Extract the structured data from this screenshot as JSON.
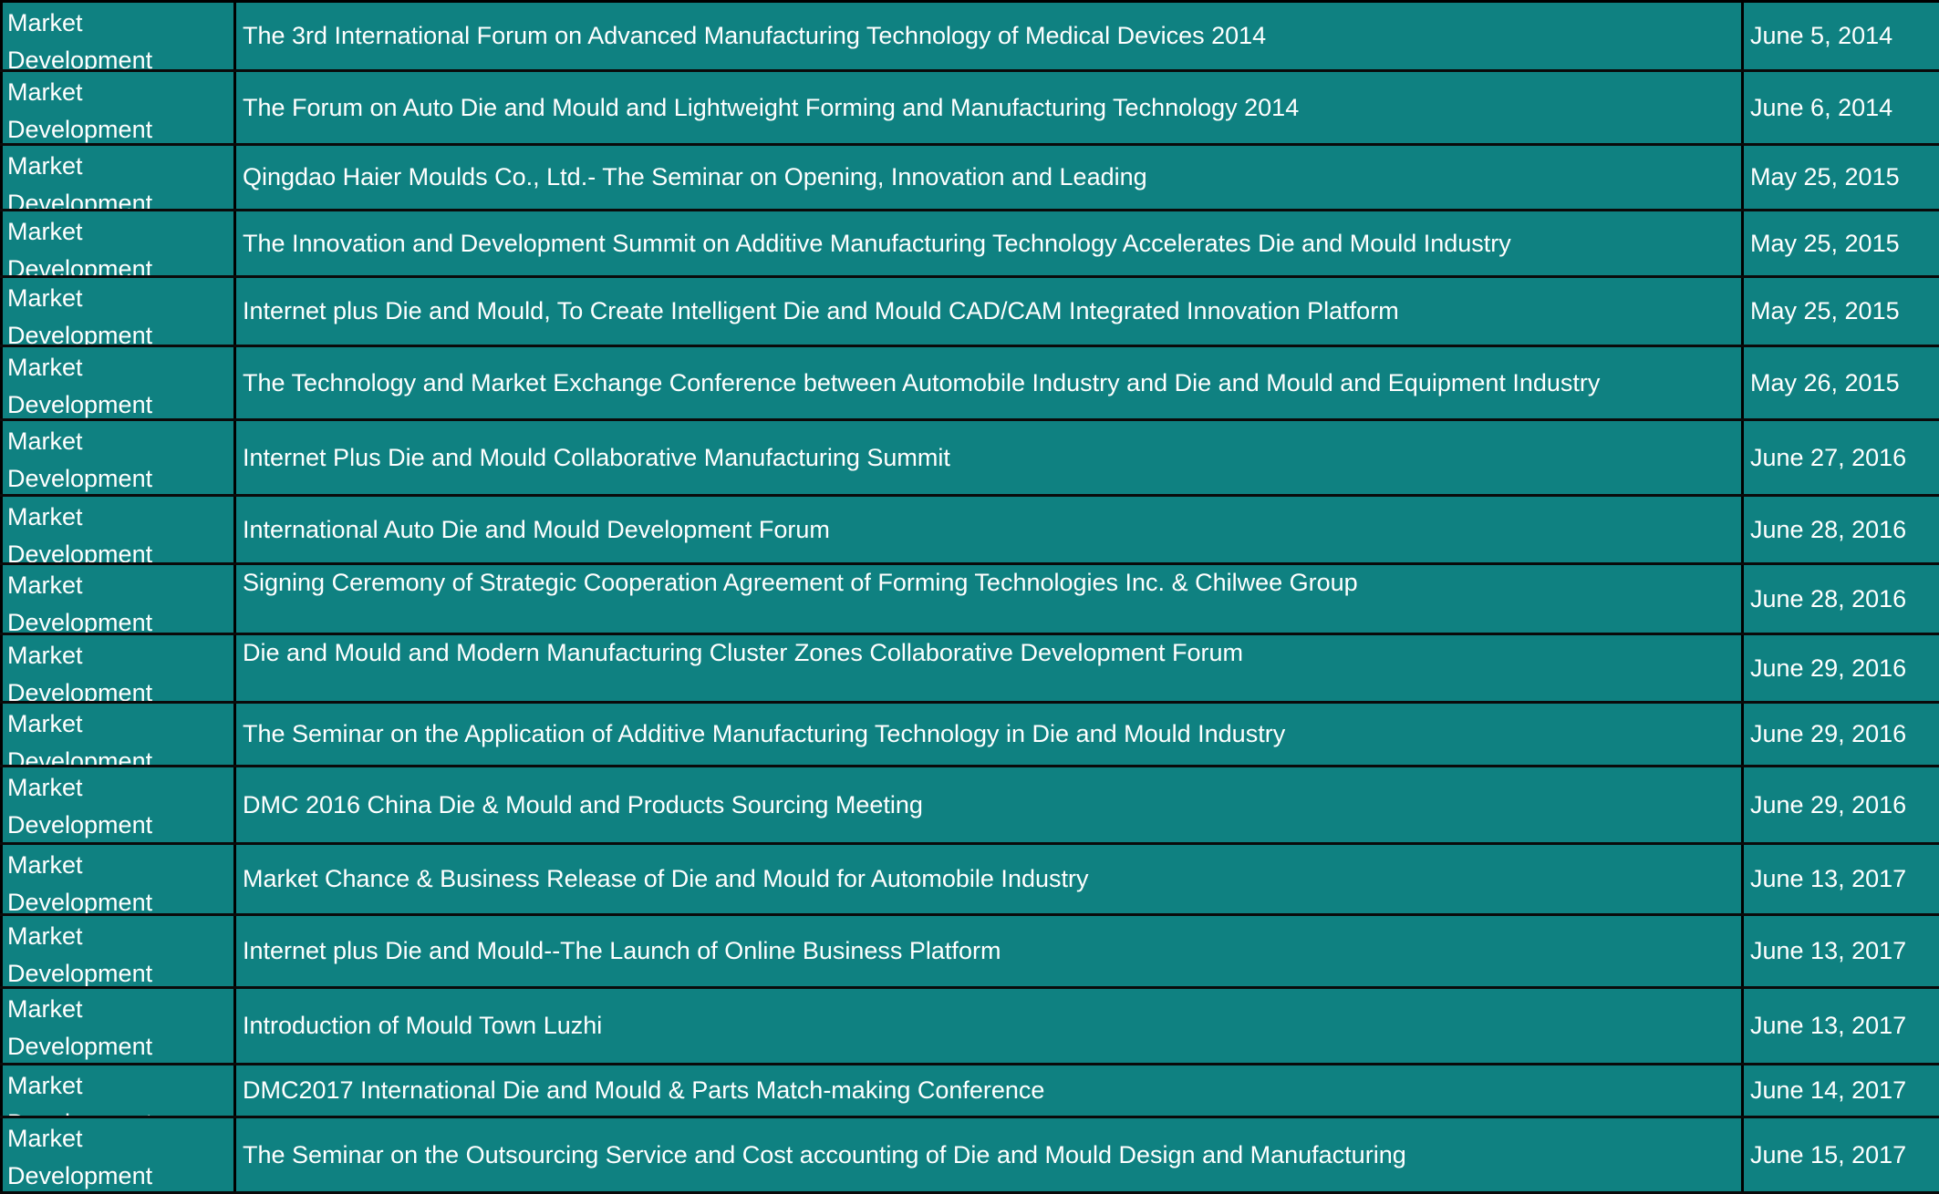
{
  "colors": {
    "cell_bg": "#0f8181",
    "grid": "#0a0a0a",
    "text": "#ffffff"
  },
  "rows": [
    {
      "category": [
        "Market",
        "Development"
      ],
      "title": "The 3rd International Forum on Advanced Manufacturing Technology of Medical Devices 2014",
      "date": "June 5, 2014"
    },
    {
      "category": [
        "Market",
        "Development"
      ],
      "title": "The Forum on Auto Die and Mould and Lightweight Forming and Manufacturing Technology 2014",
      "date": "June 6, 2014"
    },
    {
      "category": [
        "Market",
        "Development"
      ],
      "title": "Qingdao Haier Moulds Co., Ltd.- The Seminar on Opening, Innovation and Leading",
      "date": "May 25, 2015"
    },
    {
      "category": [
        "Market",
        "Development"
      ],
      "title": "The Innovation and Development Summit on Additive Manufacturing Technology Accelerates Die and Mould Industry",
      "date": "May 25, 2015"
    },
    {
      "category": [
        "Market",
        "Development"
      ],
      "title": "Internet plus Die and Mould, To Create Intelligent Die and Mould CAD/CAM Integrated Innovation Platform",
      "date": "May 25, 2015"
    },
    {
      "category": [
        "Market",
        "Development"
      ],
      "title": "The Technology and Market Exchange Conference between Automobile Industry and Die and Mould and Equipment Industry",
      "date": "May 26, 2015"
    },
    {
      "category": [
        "Market",
        "Development"
      ],
      "title": "Internet Plus Die and Mould Collaborative Manufacturing Summit",
      "date": "June 27, 2016"
    },
    {
      "category": [
        "Market",
        "Development"
      ],
      "title": "International Auto Die and Mould Development Forum",
      "date": "June 28, 2016"
    },
    {
      "category": [
        "Market",
        "Development"
      ],
      "title": "Signing Ceremony of Strategic Cooperation Agreement of Forming Technologies Inc. & Chilwee Group",
      "date": "June 28, 2016"
    },
    {
      "category": [
        "Market",
        "Development"
      ],
      "title": "Die and Mould and Modern Manufacturing Cluster Zones Collaborative Development Forum",
      "date": "June 29, 2016"
    },
    {
      "category": [
        "Market",
        "Development"
      ],
      "title": "The Seminar on the Application of Additive Manufacturing Technology in Die and Mould Industry",
      "date": "June 29, 2016"
    },
    {
      "category": [
        "Market",
        "Development"
      ],
      "title": "DMC 2016 China Die & Mould and Products Sourcing Meeting",
      "date": "June 29, 2016"
    },
    {
      "category": [
        "Market",
        "Development"
      ],
      "title": "Market Chance & Business Release of Die and Mould for Automobile Industry",
      "date": "June 13, 2017"
    },
    {
      "category": [
        "Market",
        "Development"
      ],
      "title": "Internet plus Die and Mould--The Launch of Online Business Platform",
      "date": "June 13, 2017"
    },
    {
      "category": [
        "Market",
        "Development"
      ],
      "title": "Introduction of Mould Town Luzhi",
      "date": "June 13, 2017"
    },
    {
      "category": [
        "Market",
        "Development"
      ],
      "title": "DMC2017 International Die and Mould & Parts Match-making Conference",
      "date": "June 14, 2017"
    },
    {
      "category": [
        "Market",
        "Development"
      ],
      "title": "The Seminar on the Outsourcing Service and Cost accounting of Die and Mould Design and Manufacturing",
      "date": "June 15, 2017"
    }
  ]
}
